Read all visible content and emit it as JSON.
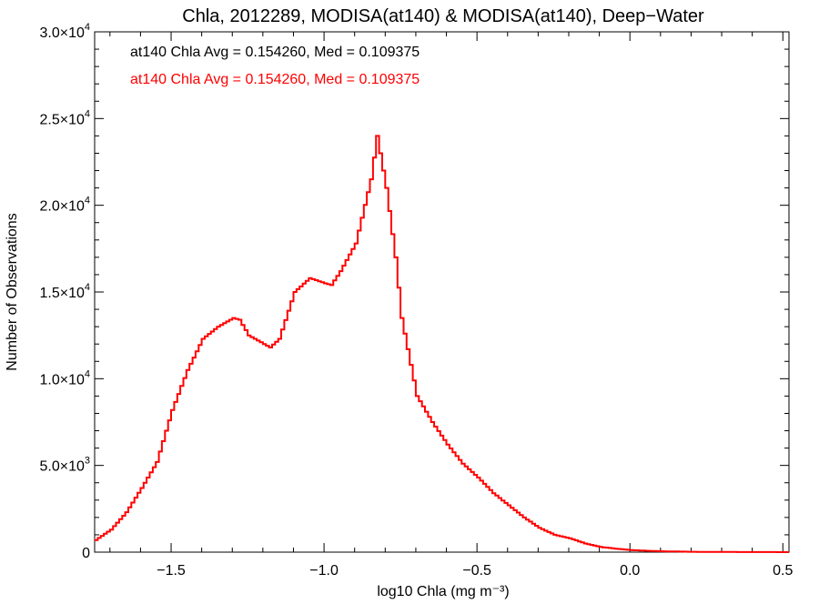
{
  "chart_data": {
    "type": "line",
    "title": "Chla, 2012289, MODISA(at140) & MODISA(at140), Deep−Water",
    "xlabel": "log10 Chla (mg m⁻³)",
    "ylabel": "Number of Observations",
    "xlim": [
      -1.75,
      0.52
    ],
    "ylim": [
      0,
      30000
    ],
    "xticks": [
      -1.5,
      -1.0,
      -0.5,
      0.0,
      0.5
    ],
    "xtick_labels": [
      "−1.5",
      "−1.0",
      "−0.5",
      "0.0",
      "0.5"
    ],
    "yticks": [
      0,
      5000,
      10000,
      15000,
      20000,
      25000,
      30000
    ],
    "ytick_labels": [
      {
        "mantissa": "0",
        "exp": ""
      },
      {
        "mantissa": "5.0×10",
        "exp": "3"
      },
      {
        "mantissa": "1.0×10",
        "exp": "4"
      },
      {
        "mantissa": "1.5×10",
        "exp": "4"
      },
      {
        "mantissa": "2.0×10",
        "exp": "4"
      },
      {
        "mantissa": "2.5×10",
        "exp": "4"
      },
      {
        "mantissa": "3.0×10",
        "exp": "4"
      }
    ],
    "grid": false,
    "annotations": [
      {
        "text": "at140 Chla Avg = 0.154260, Med = 0.109375",
        "color": "#000000"
      },
      {
        "text": "at140 Chla Avg = 0.154260, Med = 0.109375",
        "color": "#ff0000"
      }
    ],
    "series": [
      {
        "color": "#ff0000",
        "style": "step",
        "x": [
          -1.75,
          -1.7,
          -1.65,
          -1.6,
          -1.55,
          -1.5,
          -1.45,
          -1.4,
          -1.35,
          -1.3,
          -1.28,
          -1.25,
          -1.2,
          -1.18,
          -1.15,
          -1.1,
          -1.05,
          -1.0,
          -0.98,
          -0.95,
          -0.9,
          -0.85,
          -0.83,
          -0.8,
          -0.77,
          -0.75,
          -0.7,
          -0.65,
          -0.6,
          -0.55,
          -0.5,
          -0.45,
          -0.4,
          -0.35,
          -0.3,
          -0.25,
          -0.2,
          -0.15,
          -0.1,
          -0.05,
          0.0,
          0.05,
          0.1,
          0.2,
          0.3,
          0.4,
          0.5,
          0.52
        ],
        "y": [
          700,
          1300,
          2300,
          3700,
          5200,
          8200,
          10500,
          12300,
          13000,
          13500,
          13400,
          12500,
          12000,
          11800,
          12300,
          15000,
          15800,
          15500,
          15400,
          16200,
          17800,
          21500,
          24000,
          21000,
          17000,
          13500,
          9000,
          7500,
          6200,
          5100,
          4300,
          3400,
          2700,
          2000,
          1400,
          1000,
          800,
          500,
          300,
          200,
          120,
          80,
          50,
          20,
          10,
          5,
          2,
          0
        ]
      }
    ]
  }
}
